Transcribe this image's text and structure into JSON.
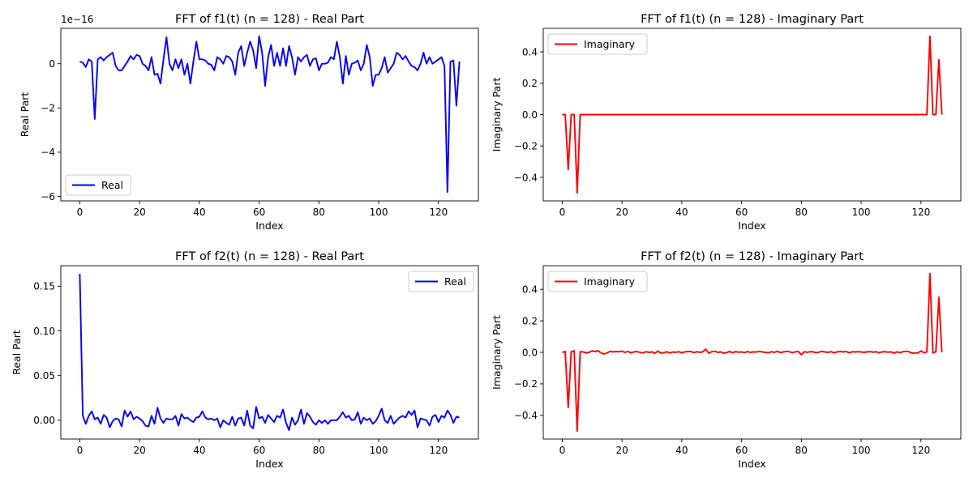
{
  "chart_data": [
    {
      "type": "line",
      "title": "FFT of f1(t) (n = 128) - Real Part",
      "xlabel": "Index",
      "ylabel": "Real Part",
      "offset_text": "1e−16",
      "xlim": [
        -6.35,
        133.35
      ],
      "ylim": [
        -6.2,
        1.6
      ],
      "xticks": [
        0,
        20,
        40,
        60,
        80,
        100,
        120
      ],
      "yticks": [
        {
          "v": 0,
          "label": "0"
        },
        {
          "v": -2,
          "label": "−2"
        },
        {
          "v": -4,
          "label": "−4"
        },
        {
          "v": -6,
          "label": "−6"
        }
      ],
      "legend": {
        "position": "lower-left",
        "label": "Real"
      },
      "grid": false,
      "series": [
        {
          "name": "Real",
          "color": "#0000ff",
          "x": [
            0,
            1,
            2,
            3,
            4,
            5,
            6,
            7,
            8,
            9,
            10,
            11,
            12,
            13,
            14,
            15,
            16,
            17,
            18,
            19,
            20,
            21,
            22,
            23,
            24,
            25,
            26,
            27,
            28,
            29,
            30,
            31,
            32,
            33,
            34,
            35,
            36,
            37,
            38,
            39,
            40,
            41,
            42,
            43,
            44,
            45,
            46,
            47,
            48,
            49,
            50,
            51,
            52,
            53,
            54,
            55,
            56,
            57,
            58,
            59,
            60,
            61,
            62,
            63,
            64,
            65,
            66,
            67,
            68,
            69,
            70,
            71,
            72,
            73,
            74,
            75,
            76,
            77,
            78,
            79,
            80,
            81,
            82,
            83,
            84,
            85,
            86,
            87,
            88,
            89,
            90,
            91,
            92,
            93,
            94,
            95,
            96,
            97,
            98,
            99,
            100,
            101,
            102,
            103,
            104,
            105,
            106,
            107,
            108,
            109,
            110,
            111,
            112,
            113,
            114,
            115,
            116,
            117,
            118,
            119,
            120,
            121,
            122,
            123,
            124,
            125,
            126,
            127
          ],
          "y": [
            0.1,
            0.05,
            -0.15,
            0.2,
            0.1,
            -2.5,
            0.2,
            0.3,
            0.15,
            0.3,
            0.4,
            0.5,
            -0.1,
            -0.3,
            -0.3,
            -0.1,
            0.1,
            0.35,
            0.2,
            0.4,
            0.35,
            0.0,
            -0.1,
            -0.3,
            0.3,
            -0.5,
            -0.45,
            -0.9,
            0.2,
            1.2,
            0.0,
            -0.3,
            0.2,
            -0.2,
            0.2,
            -0.5,
            0.0,
            -0.9,
            0.1,
            1.0,
            0.2,
            0.2,
            0.15,
            0.0,
            -0.05,
            -0.3,
            0.3,
            0.2,
            0.0,
            0.35,
            0.3,
            0.1,
            -0.5,
            0.5,
            0.8,
            -0.1,
            0.5,
            1.0,
            0.6,
            -0.2,
            1.25,
            0.5,
            -1.0,
            0.3,
            0.85,
            -0.1,
            0.5,
            -0.1,
            0.7,
            -0.1,
            0.8,
            0.3,
            -0.5,
            0.3,
            0.1,
            0.3,
            0.4,
            -0.1,
            0.2,
            0.25,
            -0.3,
            0.0,
            0.0,
            0.05,
            0.3,
            0.2,
            1.0,
            0.3,
            -0.9,
            0.35,
            -0.5,
            0.0,
            0.05,
            0.15,
            -0.3,
            0.0,
            0.85,
            0.3,
            -1.0,
            -0.5,
            -0.5,
            -0.2,
            0.3,
            -0.4,
            -0.2,
            0.0,
            0.5,
            0.4,
            0.2,
            0.35,
            0.1,
            -0.1,
            -0.15,
            -0.3,
            0.0,
            0.5,
            0.0,
            0.3,
            0.0,
            0.1,
            0.2,
            0.3,
            -0.1,
            -5.8,
            0.1,
            0.15,
            -1.9,
            0.1
          ]
        }
      ]
    },
    {
      "type": "line",
      "title": "FFT of f1(t) (n = 128) - Imaginary Part",
      "xlabel": "Index",
      "ylabel": "Imaginary Part",
      "xlim": [
        -6.35,
        133.35
      ],
      "ylim": [
        -0.55,
        0.55
      ],
      "xticks": [
        0,
        20,
        40,
        60,
        80,
        100,
        120
      ],
      "yticks": [
        {
          "v": 0.4,
          "label": "0.4"
        },
        {
          "v": 0.2,
          "label": "0.2"
        },
        {
          "v": 0.0,
          "label": "0.0"
        },
        {
          "v": -0.2,
          "label": "−0.2"
        },
        {
          "v": -0.4,
          "label": "−0.4"
        }
      ],
      "legend": {
        "position": "upper-left",
        "label": "Imaginary"
      },
      "grid": false,
      "series": [
        {
          "name": "Imaginary",
          "color": "#ff0000",
          "x": [
            0,
            1,
            2,
            3,
            4,
            5,
            6,
            7,
            8,
            10,
            20,
            30,
            40,
            50,
            60,
            70,
            80,
            90,
            100,
            110,
            120,
            121,
            122,
            123,
            124,
            125,
            126,
            127
          ],
          "y": [
            0,
            0,
            -0.35,
            0,
            0,
            -0.5,
            0,
            0,
            0,
            0,
            0,
            0,
            0,
            0,
            0,
            0,
            0,
            0,
            0,
            0,
            0,
            0,
            0,
            0.5,
            0,
            0,
            0.35,
            0
          ]
        }
      ]
    },
    {
      "type": "line",
      "title": "FFT of f2(t) (n = 128) - Real Part",
      "xlabel": "Index",
      "ylabel": "Real Part",
      "xlim": [
        -6.35,
        133.35
      ],
      "ylim": [
        -0.021,
        0.173
      ],
      "xticks": [
        0,
        20,
        40,
        60,
        80,
        100,
        120
      ],
      "yticks": [
        {
          "v": 0.15,
          "label": "0.15"
        },
        {
          "v": 0.1,
          "label": "0.10"
        },
        {
          "v": 0.05,
          "label": "0.05"
        },
        {
          "v": 0.0,
          "label": "0.00"
        }
      ],
      "legend": {
        "position": "upper-right",
        "label": "Real"
      },
      "grid": false,
      "series": [
        {
          "name": "Real",
          "color": "#0000ff",
          "x": [
            0,
            1,
            2,
            3,
            4,
            5,
            6,
            7,
            8,
            9,
            10,
            11,
            12,
            13,
            14,
            15,
            16,
            17,
            18,
            19,
            20,
            21,
            22,
            23,
            24,
            25,
            26,
            27,
            28,
            29,
            30,
            31,
            32,
            33,
            34,
            35,
            36,
            37,
            38,
            39,
            40,
            41,
            42,
            43,
            44,
            45,
            46,
            47,
            48,
            49,
            50,
            51,
            52,
            53,
            54,
            55,
            56,
            57,
            58,
            59,
            60,
            61,
            62,
            63,
            64,
            65,
            66,
            67,
            68,
            69,
            70,
            71,
            72,
            73,
            74,
            75,
            76,
            77,
            78,
            79,
            80,
            81,
            82,
            83,
            84,
            85,
            86,
            87,
            88,
            89,
            90,
            91,
            92,
            93,
            94,
            95,
            96,
            97,
            98,
            99,
            100,
            101,
            102,
            103,
            104,
            105,
            106,
            107,
            108,
            109,
            110,
            111,
            112,
            113,
            114,
            115,
            116,
            117,
            118,
            119,
            120,
            121,
            122,
            123,
            124,
            125,
            126,
            127
          ],
          "y": [
            0.164,
            0.005,
            -0.004,
            0.005,
            0.01,
            0.001,
            0.003,
            -0.004,
            0.006,
            0.003,
            -0.008,
            -0.001,
            0.002,
            0.001,
            -0.007,
            0.011,
            0.004,
            0.01,
            0.001,
            0.004,
            0.002,
            -0.001,
            -0.006,
            -0.007,
            0.005,
            -0.004,
            0.014,
            0.002,
            -0.003,
            0.002,
            0.001,
            0.001,
            0.005,
            -0.006,
            0.007,
            0.002,
            0.003,
            0.0,
            -0.002,
            0.003,
            0.004,
            0.01,
            0.003,
            0.001,
            0.002,
            0.0,
            0.002,
            -0.008,
            0.0,
            -0.003,
            -0.005,
            0.004,
            -0.006,
            0.002,
            0.003,
            -0.006,
            0.011,
            -0.006,
            -0.009,
            0.015,
            0.002,
            0.004,
            -0.003,
            0.006,
            0.002,
            -0.002,
            0.005,
            0.003,
            0.012,
            -0.003,
            -0.011,
            0.003,
            -0.005,
            0.0,
            0.012,
            -0.004,
            0.008,
            0.004,
            -0.002,
            -0.005,
            0.0,
            -0.003,
            0.0,
            -0.004,
            0.0,
            0.0,
            0.0,
            0.004,
            0.009,
            0.003,
            0.005,
            0.0,
            0.001,
            0.009,
            -0.004,
            0.003,
            0.0,
            0.002,
            -0.004,
            -0.001,
            0.005,
            0.013,
            0.0,
            -0.003,
            0.005,
            -0.004,
            0.0,
            0.003,
            0.005,
            0.003,
            0.01,
            0.006,
            0.011,
            -0.008,
            0.002,
            0.001,
            0.0,
            -0.006,
            0.004,
            0.006,
            -0.002,
            0.005,
            0.003,
            0.011,
            0.006,
            -0.003,
            0.004,
            0.003
          ]
        }
      ]
    },
    {
      "type": "line",
      "title": "FFT of f2(t) (n = 128) - Imaginary Part",
      "xlabel": "Index",
      "ylabel": "Imaginary Part",
      "xlim": [
        -6.35,
        133.35
      ],
      "ylim": [
        -0.55,
        0.55
      ],
      "xticks": [
        0,
        20,
        40,
        60,
        80,
        100,
        120
      ],
      "yticks": [
        {
          "v": 0.4,
          "label": "0.4"
        },
        {
          "v": 0.2,
          "label": "0.2"
        },
        {
          "v": 0.0,
          "label": "0.0"
        },
        {
          "v": -0.2,
          "label": "−0.2"
        },
        {
          "v": -0.4,
          "label": "−0.4"
        }
      ],
      "legend": {
        "position": "upper-left",
        "label": "Imaginary"
      },
      "grid": false,
      "series": [
        {
          "name": "Imaginary",
          "color": "#ff0000",
          "x": [
            0,
            1,
            2,
            3,
            4,
            5,
            6,
            7,
            8,
            9,
            10,
            11,
            12,
            13,
            14,
            15,
            16,
            17,
            18,
            19,
            20,
            21,
            22,
            23,
            24,
            25,
            26,
            27,
            28,
            29,
            30,
            31,
            32,
            33,
            34,
            35,
            36,
            37,
            38,
            39,
            40,
            41,
            42,
            43,
            44,
            45,
            46,
            47,
            48,
            49,
            50,
            51,
            52,
            53,
            54,
            55,
            56,
            57,
            58,
            59,
            60,
            61,
            62,
            63,
            64,
            65,
            66,
            67,
            68,
            69,
            70,
            71,
            72,
            73,
            74,
            75,
            76,
            77,
            78,
            79,
            80,
            81,
            82,
            83,
            84,
            85,
            86,
            87,
            88,
            89,
            90,
            91,
            92,
            93,
            94,
            95,
            96,
            97,
            98,
            99,
            100,
            101,
            102,
            103,
            104,
            105,
            106,
            107,
            108,
            109,
            110,
            111,
            112,
            113,
            114,
            115,
            116,
            117,
            118,
            119,
            120,
            121,
            122,
            123,
            124,
            125,
            126,
            127
          ],
          "y": [
            0.0,
            0.005,
            -0.35,
            0.004,
            0.01,
            -0.5,
            0.004,
            0.003,
            -0.004,
            0.0,
            0.01,
            0.005,
            0.01,
            -0.004,
            -0.01,
            -0.004,
            0.007,
            0.003,
            0.005,
            0.004,
            0.008,
            0.0,
            0.006,
            -0.003,
            0.003,
            0.005,
            0.0,
            -0.004,
            0.004,
            0.0,
            0.003,
            -0.006,
            0.008,
            -0.004,
            -0.003,
            0.004,
            -0.004,
            0.002,
            0.0,
            0.004,
            -0.003,
            0.003,
            0.005,
            0.006,
            -0.002,
            0.004,
            0.0,
            0.003,
            0.02,
            -0.005,
            0.004,
            0.007,
            0.0,
            0.003,
            -0.005,
            -0.002,
            0.006,
            -0.003,
            0.005,
            0.001,
            0.003,
            -0.002,
            0.005,
            0.0,
            0.003,
            0.002,
            0.006,
            0.002,
            0.0,
            -0.003,
            0.004,
            0.0,
            0.007,
            -0.002,
            0.003,
            0.006,
            0.004,
            -0.002,
            0.003,
            0.006,
            -0.015,
            0.004,
            0.0,
            0.004,
            0.003,
            -0.003,
            0.002,
            0.006,
            0.002,
            0.0,
            0.004,
            -0.003,
            0.003,
            0.006,
            0.002,
            0.006,
            -0.003,
            0.004,
            0.002,
            0.004,
            0.002,
            0.0,
            0.003,
            0.005,
            0.001,
            0.004,
            -0.003,
            0.003,
            0.004,
            0.001,
            0.003,
            -0.005,
            0.003,
            -0.002,
            0.004,
            0.007,
            0.004,
            -0.005,
            -0.004,
            -0.004,
            0.009,
            -0.002,
            0.002,
            0.5,
            -0.004,
            0.004,
            0.35,
            0.0
          ]
        }
      ]
    }
  ]
}
